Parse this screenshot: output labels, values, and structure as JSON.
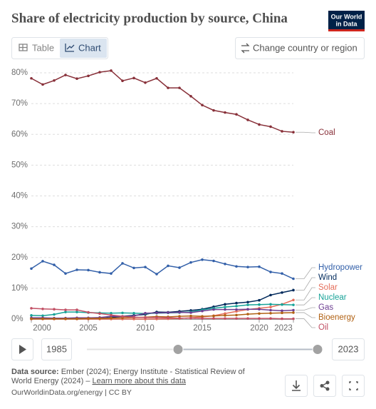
{
  "chart_data": {
    "type": "line",
    "title": "Share of electricity production by source, China",
    "x": [
      2000,
      2001,
      2002,
      2003,
      2004,
      2005,
      2006,
      2007,
      2008,
      2009,
      2010,
      2011,
      2012,
      2013,
      2014,
      2015,
      2016,
      2017,
      2018,
      2019,
      2020,
      2021,
      2022,
      2023
    ],
    "xlim": [
      2000,
      2023
    ],
    "xticks": [
      2000,
      2005,
      2010,
      2015,
      2020,
      2023
    ],
    "ylim": [
      0,
      80
    ],
    "yticks": [
      {
        "value": 0,
        "label": "0%"
      },
      {
        "value": 10,
        "label": "10%"
      },
      {
        "value": 20,
        "label": "20%"
      },
      {
        "value": 30,
        "label": "30%"
      },
      {
        "value": 40,
        "label": "40%"
      },
      {
        "value": 50,
        "label": "50%"
      },
      {
        "value": 60,
        "label": "60%"
      },
      {
        "value": 70,
        "label": "70%"
      },
      {
        "value": 80,
        "label": "80%"
      }
    ],
    "grid": true,
    "series": [
      {
        "name": "Coal",
        "color": "#883039",
        "values": [
          78.2,
          76.2,
          77.5,
          79.3,
          78.1,
          79.0,
          80.2,
          80.7,
          77.4,
          78.3,
          76.8,
          78.2,
          75.1,
          75.1,
          72.4,
          69.5,
          67.8,
          67.1,
          66.5,
          64.7,
          63.2,
          62.5,
          61.0,
          60.7
        ]
      },
      {
        "name": "Hydropower",
        "color": "#3360a9",
        "values": [
          16.4,
          18.8,
          17.6,
          14.8,
          16.0,
          15.9,
          15.2,
          14.8,
          18.1,
          16.6,
          16.9,
          14.6,
          17.3,
          16.7,
          18.4,
          19.3,
          18.9,
          17.9,
          17.1,
          16.9,
          17.0,
          15.3,
          14.8,
          13.1
        ]
      },
      {
        "name": "Wind",
        "color": "#00295b",
        "values": [
          0.05,
          0.06,
          0.07,
          0.07,
          0.07,
          0.1,
          0.2,
          0.5,
          0.9,
          1.2,
          1.5,
          2.3,
          2.2,
          2.5,
          2.8,
          3.2,
          4.0,
          4.8,
          5.2,
          5.5,
          6.1,
          7.8,
          8.6,
          9.4
        ]
      },
      {
        "name": "Solar",
        "color": "#e56e5a",
        "values": [
          0,
          0,
          0,
          0,
          0,
          0,
          0,
          0,
          0,
          0,
          0,
          0.02,
          0.1,
          0.2,
          0.4,
          0.7,
          1.1,
          1.8,
          2.5,
          3.1,
          3.5,
          3.9,
          4.8,
          6.2
        ]
      },
      {
        "name": "Nuclear",
        "color": "#18a398",
        "values": [
          1.2,
          1.1,
          1.5,
          2.3,
          2.3,
          2.1,
          2.0,
          1.9,
          2.0,
          1.9,
          1.8,
          1.9,
          2.0,
          2.1,
          2.3,
          3.0,
          3.5,
          3.9,
          4.2,
          4.6,
          4.7,
          4.8,
          4.7,
          4.6
        ]
      },
      {
        "name": "Gas",
        "color": "#6d3e91",
        "values": [
          0.4,
          0.4,
          0.3,
          0.3,
          0.4,
          0.4,
          0.5,
          0.9,
          0.8,
          1.0,
          1.9,
          2.0,
          2.1,
          2.2,
          2.1,
          2.6,
          3.1,
          3.1,
          3.1,
          3.2,
          3.2,
          2.9,
          2.7,
          2.9
        ]
      },
      {
        "name": "Bioenergy",
        "color": "#b16214",
        "values": [
          0.1,
          0.1,
          0.1,
          0.1,
          0.1,
          0.2,
          0.2,
          0.3,
          0.4,
          0.5,
          0.6,
          0.8,
          0.7,
          0.9,
          1.0,
          0.9,
          1.0,
          1.2,
          1.3,
          1.6,
          1.8,
          1.9,
          2.0,
          2.1
        ]
      },
      {
        "name": "Oil",
        "color": "#c15065",
        "values": [
          3.5,
          3.3,
          3.2,
          3.0,
          3.0,
          2.2,
          1.8,
          1.3,
          0.9,
          0.6,
          0.5,
          0.5,
          0.4,
          0.3,
          0.3,
          0.2,
          0.2,
          0.2,
          0.2,
          0.2,
          0.2,
          0.2,
          0.1,
          0.1
        ]
      }
    ]
  },
  "ui": {
    "logo": [
      "Our World",
      "in Data"
    ],
    "tabs": [
      "Table",
      "Chart"
    ],
    "change_button": "Change country or region",
    "timeline": {
      "start": "1985",
      "end": "2023"
    },
    "source": {
      "label": "Data source:",
      "text_1": "Ember (2024); Energy Institute - Statistical Review of",
      "text_2": "World Energy (2024) –",
      "link": "Learn more about this data",
      "footer": "OurWorldinData.org/energy | CC BY"
    }
  }
}
